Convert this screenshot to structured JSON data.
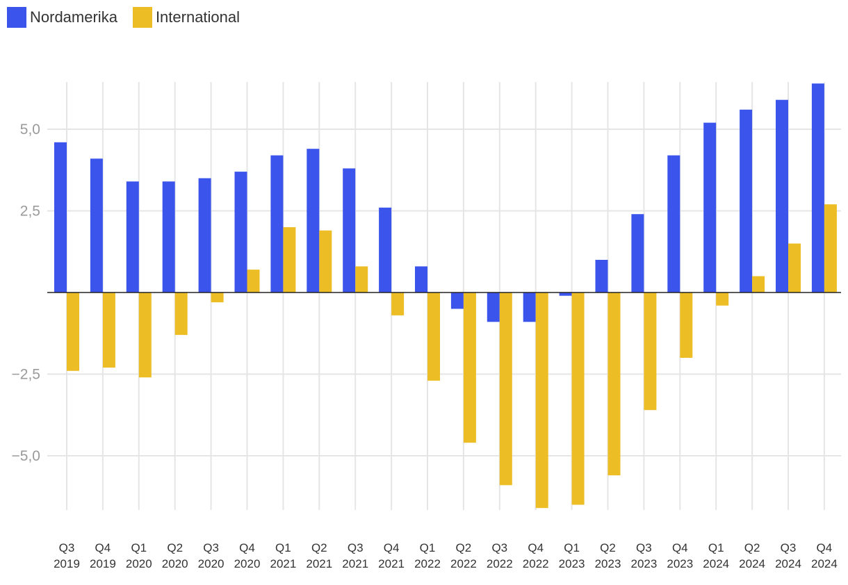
{
  "chart_data": {
    "type": "bar",
    "title": "",
    "xlabel": "",
    "ylabel": "",
    "ylim": [
      -6.6,
      6.4
    ],
    "yticks": [
      -5.0,
      -2.5,
      2.5,
      5.0
    ],
    "ytick_labels": [
      "−5,0",
      "−2,5",
      "2,5",
      "5,0"
    ],
    "categories": [
      [
        "Q3",
        "2019"
      ],
      [
        "Q4",
        "2019"
      ],
      [
        "Q1",
        "2020"
      ],
      [
        "Q2",
        "2020"
      ],
      [
        "Q3",
        "2020"
      ],
      [
        "Q4",
        "2020"
      ],
      [
        "Q1",
        "2021"
      ],
      [
        "Q2",
        "2021"
      ],
      [
        "Q3",
        "2021"
      ],
      [
        "Q4",
        "2021"
      ],
      [
        "Q1",
        "2022"
      ],
      [
        "Q2",
        "2022"
      ],
      [
        "Q3",
        "2022"
      ],
      [
        "Q4",
        "2022"
      ],
      [
        "Q1",
        "2023"
      ],
      [
        "Q2",
        "2023"
      ],
      [
        "Q3",
        "2023"
      ],
      [
        "Q4",
        "2023"
      ],
      [
        "Q1",
        "2024"
      ],
      [
        "Q2",
        "2024"
      ],
      [
        "Q3",
        "2024"
      ],
      [
        "Q4",
        "2024"
      ]
    ],
    "series": [
      {
        "name": "Nordamerika",
        "color": "#3b55ec",
        "values": [
          4.6,
          4.1,
          3.4,
          3.4,
          3.5,
          3.7,
          4.2,
          4.4,
          3.8,
          2.6,
          0.8,
          -0.5,
          -0.9,
          -0.9,
          -0.1,
          1.0,
          2.4,
          4.2,
          5.2,
          5.6,
          5.9,
          6.4
        ]
      },
      {
        "name": "International",
        "color": "#ecbd24",
        "values": [
          -2.4,
          -2.3,
          -2.6,
          -1.3,
          -0.3,
          0.7,
          2.0,
          1.9,
          0.8,
          -0.7,
          -2.7,
          -4.6,
          -5.9,
          -6.6,
          -6.5,
          -5.6,
          -3.6,
          -2.0,
          -0.4,
          0.5,
          1.5,
          2.7
        ]
      }
    ],
    "legend_position": "top-left",
    "grid": true
  }
}
